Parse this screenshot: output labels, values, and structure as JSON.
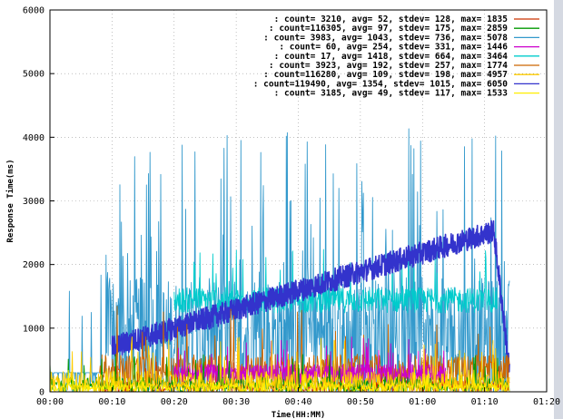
{
  "chart_data": {
    "type": "line",
    "xlabel": "Time(HH:MM)",
    "ylabel": "Response Time(ms)",
    "xlim": [
      0,
      80
    ],
    "ylim": [
      0,
      6000
    ],
    "x_ticks": [
      "00:00",
      "00:10",
      "00:20",
      "00:30",
      "00:40",
      "00:50",
      "01:00",
      "01:10",
      "01:20"
    ],
    "y_ticks": [
      "0",
      "1000",
      "2000",
      "3000",
      "4000",
      "5000",
      "6000"
    ],
    "grid": true,
    "legend_position": "top-right",
    "series": [
      {
        "label": " : count=  3210, avg=    52, stdev=   128, max= 1835",
        "color": "#cc3300",
        "style": "flat",
        "base": 60,
        "spread": 100,
        "x_start": 8,
        "x_end": 74
      },
      {
        "label": ": count=116305, avg=    97, stdev=   175, max= 2859",
        "color": "#009900",
        "style": "flat",
        "base": 90,
        "spread": 120,
        "x_start": 0,
        "x_end": 74
      },
      {
        "label": " : count=  3983, avg=  1043, stdev=   736, max= 5078",
        "color": "#3399cc",
        "style": "spiky",
        "base": 1040,
        "spread": 900,
        "x_start": 0,
        "x_end": 74
      },
      {
        "label": " : count=    60, avg=   254, stdev=   331, max= 1446",
        "color": "#cc00cc",
        "style": "flat",
        "base": 250,
        "spread": 150,
        "x_start": 20,
        "x_end": 64
      },
      {
        "label": " : count=    17, avg=  1418, stdev=   664, max= 3464",
        "color": "#00cccc",
        "style": "flat",
        "base": 1400,
        "spread": 200,
        "x_start": 20,
        "x_end": 72
      },
      {
        "label": " : count=  3923, avg=   192, stdev=   257, max= 1774",
        "color": "#cc6600",
        "style": "flat",
        "base": 280,
        "spread": 260,
        "x_start": 8,
        "x_end": 74
      },
      {
        "label": ": count=116280, avg=   109, stdev=   198, max= 4957",
        "color": "#ffcc00",
        "style": "flat",
        "base": 110,
        "spread": 180,
        "x_start": 0,
        "x_end": 74
      },
      {
        "label": ": count=119490, avg=  1354, stdev=  1015, max= 6050",
        "color": "#3333cc",
        "style": "ramp",
        "base": 700,
        "spread": 180,
        "x_start": 10,
        "x_end": 74
      },
      {
        "label": " : count=  3185, avg=    49, stdev=   117, max= 1533",
        "color": "#ffee00",
        "style": "flat",
        "base": 50,
        "spread": 80,
        "x_start": 0,
        "x_end": 74
      }
    ]
  }
}
